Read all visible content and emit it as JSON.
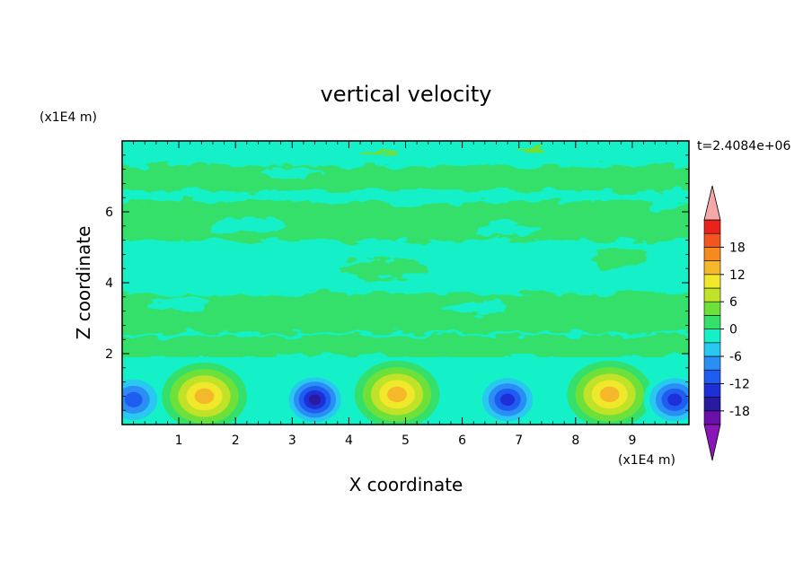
{
  "chart_data": {
    "type": "heatmap",
    "title": "vertical velocity",
    "xlabel": "X coordinate",
    "ylabel": "Z coordinate",
    "x_unit": "(x1E4 m)",
    "y_unit": "(x1E4 m)",
    "time_label": "t=2.4084e+06",
    "xlim": [
      0,
      10
    ],
    "ylim": [
      0,
      8
    ],
    "x_ticks": [
      "1",
      "2",
      "3",
      "4",
      "5",
      "6",
      "7",
      "8",
      "9"
    ],
    "y_ticks": [
      "2",
      "4",
      "6"
    ],
    "colorbar": {
      "levels": [
        -21,
        -18,
        -15,
        -12,
        -9,
        -6,
        -3,
        0,
        3,
        6,
        9,
        12,
        15,
        18,
        21
      ],
      "tick_labels": [
        "18",
        "12",
        "6",
        "0",
        "-6",
        "-12",
        "-18"
      ],
      "colors": [
        "#6a0fa8",
        "#2a1aa0",
        "#1e2fd8",
        "#1f5cf0",
        "#2a8ef5",
        "#28c8f0",
        "#14f0c8",
        "#35e06a",
        "#6ee03a",
        "#c0e32a",
        "#f0e82a",
        "#f5b82a",
        "#f58a1e",
        "#f2561e",
        "#e8231e"
      ],
      "over_color": "#f4a8a8",
      "under_color": "#8a18b8"
    },
    "boundary_layer_cells": [
      {
        "x": 0.2,
        "z": 0.7,
        "w": -11
      },
      {
        "x": 1.45,
        "z": 0.8,
        "w": 12
      },
      {
        "x": 3.4,
        "z": 0.7,
        "w": -15
      },
      {
        "x": 4.85,
        "z": 0.85,
        "w": 13
      },
      {
        "x": 6.8,
        "z": 0.7,
        "w": -14
      },
      {
        "x": 8.6,
        "z": 0.85,
        "w": 12
      },
      {
        "x": 9.75,
        "z": 0.7,
        "w": -13
      }
    ],
    "grid": false
  }
}
